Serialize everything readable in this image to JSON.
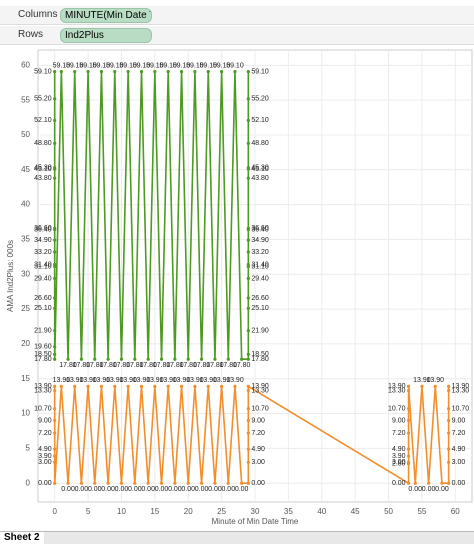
{
  "shelves": {
    "columns": {
      "label": "Columns",
      "pill": "MINUTE(Min Date Ti.."
    },
    "rows": {
      "label": "Rows",
      "pill": "Ind2Plus"
    }
  },
  "tabs": [
    "Sheet 2"
  ],
  "chart_data": {
    "type": "line",
    "x_label": "Minute of Min Date Time",
    "y_label": "AMA Ind2Plus: 000s",
    "xlim": [
      -2.5,
      62.5
    ],
    "xticks": [
      0,
      5,
      10,
      15,
      20,
      25,
      30,
      35,
      40,
      45,
      50,
      55,
      60
    ],
    "ylim": [
      -2.7,
      62.2
    ],
    "yticks": [
      0,
      5,
      10,
      15,
      20,
      25,
      30,
      35,
      40,
      45,
      50,
      55,
      60
    ],
    "grid": true,
    "series": [
      {
        "color": "#4e9a23",
        "x": [
          0,
          0,
          0,
          0,
          0,
          0,
          0,
          0,
          0,
          0,
          0,
          0,
          0,
          0,
          0,
          0,
          0,
          0,
          0,
          0,
          1,
          2,
          3,
          4,
          5,
          6,
          7,
          8,
          9,
          10,
          11,
          12,
          13,
          14,
          15,
          16,
          17,
          18,
          19,
          20,
          21,
          22,
          23,
          24,
          25,
          26,
          27,
          28,
          29,
          29,
          29,
          29,
          29,
          29,
          29,
          29,
          29,
          29,
          29,
          29,
          29,
          29,
          29,
          29,
          29,
          29,
          29
        ],
        "values": [
          59.1,
          55.2,
          52.1,
          48.8,
          45.3,
          45.1,
          43.8,
          36.6,
          36.4,
          34.9,
          33.2,
          31.4,
          31.1,
          29.4,
          26.6,
          25.1,
          21.9,
          19.6,
          18.5,
          17.8,
          59.1,
          17.8,
          59.1,
          17.8,
          59.1,
          17.8,
          59.1,
          17.8,
          59.1,
          17.8,
          59.1,
          17.8,
          59.1,
          17.8,
          59.1,
          17.8,
          59.1,
          17.8,
          59.1,
          17.8,
          59.1,
          17.8,
          59.1,
          17.8,
          59.1,
          17.8,
          59.1,
          17.8,
          17.8,
          18.5,
          21.9,
          25.1,
          26.6,
          29.4,
          31.1,
          31.4,
          33.2,
          34.9,
          36.4,
          36.6,
          43.8,
          45.1,
          45.3,
          48.8,
          52.1,
          55.2,
          59.1
        ],
        "value_labels": [
          "59.10",
          "55.20",
          "52.10",
          "48.80",
          "45.30",
          "45.10",
          "43.80",
          "36.60",
          "36.40",
          "34.90",
          "33.20",
          "31.40",
          "31.10",
          "29.40",
          "26.60",
          "25.10",
          "21.90",
          "19.60",
          "18.50",
          "17.80",
          "59.10",
          "17.80",
          "59.10",
          "17.80",
          "59.10",
          "17.80",
          "59.10",
          "17.80",
          "59.10",
          "17.80",
          "59.10",
          "17.80",
          "59.10",
          "17.80",
          "59.10",
          "17.80",
          "59.10",
          "17.80",
          "59.10",
          "17.80",
          "59.10",
          "17.80",
          "59.10",
          "17.80",
          "59.10",
          "17.80",
          "59.10",
          "17.80",
          "17.80",
          "18.50",
          "21.90",
          "25.10",
          "26.60",
          "29.40",
          "31.10",
          "31.40",
          "33.20",
          "34.90",
          "36.40",
          "36.60",
          "43.80",
          "45.10",
          "45.30",
          "48.80",
          "52.10",
          "55.20",
          "59.10"
        ]
      },
      {
        "color": "#f28e2b",
        "x": [
          0,
          0,
          0,
          0,
          0,
          0,
          0,
          0,
          0,
          1,
          2,
          3,
          4,
          5,
          6,
          7,
          8,
          9,
          10,
          11,
          12,
          13,
          14,
          15,
          16,
          17,
          18,
          19,
          20,
          21,
          22,
          23,
          24,
          25,
          26,
          27,
          28,
          29,
          29,
          29,
          29,
          29,
          29,
          29,
          29,
          53,
          53,
          53,
          53,
          53,
          53,
          53,
          53,
          53,
          53,
          54,
          55,
          56,
          57,
          58,
          59,
          59,
          59,
          59,
          59,
          59,
          59,
          59
        ],
        "values": [
          13.9,
          13.3,
          10.7,
          9.0,
          7.2,
          4.9,
          3.9,
          3.0,
          0.0,
          13.9,
          0.0,
          13.9,
          0.0,
          13.9,
          0.0,
          13.9,
          0.0,
          13.9,
          0.0,
          13.9,
          0.0,
          13.9,
          0.0,
          13.9,
          0.0,
          13.9,
          0.0,
          13.9,
          0.0,
          13.9,
          0.0,
          13.9,
          0.0,
          13.9,
          0.0,
          13.9,
          0.0,
          0.0,
          3.0,
          4.9,
          7.2,
          9.0,
          10.7,
          13.3,
          13.9,
          0.0,
          2.8,
          3.0,
          3.9,
          4.9,
          7.2,
          9.0,
          10.7,
          13.3,
          13.9,
          0.0,
          13.9,
          0.0,
          13.9,
          0.0,
          0.0,
          3.0,
          4.9,
          7.2,
          9.0,
          10.7,
          13.3,
          13.9
        ],
        "value_labels": [
          "13.90",
          "13.30",
          "10.70",
          "9.00",
          "7.20",
          "4.90",
          "3.90",
          "3.00",
          "0.00",
          "13.90",
          "0.00",
          "13.90",
          "0.00",
          "13.90",
          "0.00",
          "13.90",
          "0.00",
          "13.90",
          "0.00",
          "13.90",
          "0.00",
          "13.90",
          "0.00",
          "13.90",
          "0.00",
          "13.90",
          "0.00",
          "13.90",
          "0.00",
          "13.90",
          "0.00",
          "13.90",
          "0.00",
          "13.90",
          "0.00",
          "13.90",
          "0.00",
          "0.00",
          "3.00",
          "4.90",
          "7.20",
          "9.00",
          "10.70",
          "13.30",
          "13.90",
          "0.00",
          "2.80",
          "3.00",
          "3.90",
          "4.90",
          "7.20",
          "9.00",
          "10.70",
          "13.30",
          "13.90",
          "0.00",
          "13.90",
          "0.00",
          "13.90",
          "0.00",
          "0.00",
          "3.00",
          "4.90",
          "7.20",
          "9.00",
          "10.70",
          "13.30",
          "13.90"
        ]
      }
    ]
  }
}
